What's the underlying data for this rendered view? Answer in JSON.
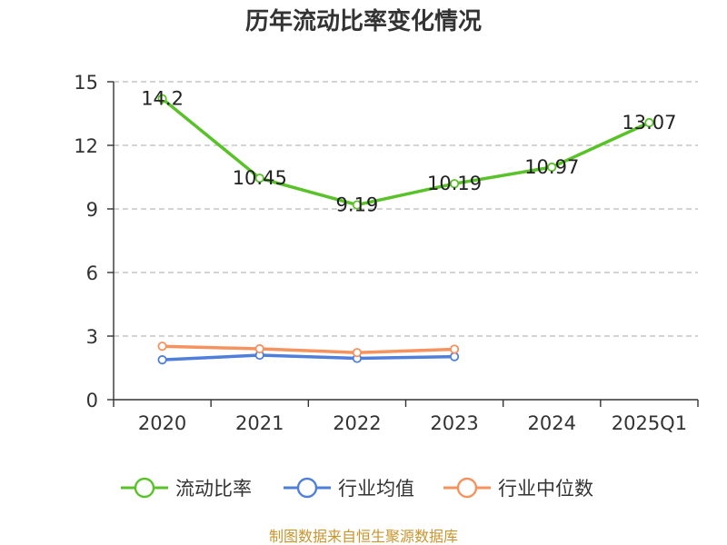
{
  "chart_data": {
    "type": "line",
    "title": "历年流动比率变化情况",
    "categories": [
      "2020",
      "2021",
      "2022",
      "2023",
      "2024",
      "2025Q1"
    ],
    "ylim": [
      0,
      15
    ],
    "yticks": [
      0,
      3,
      6,
      9,
      12,
      15
    ],
    "grid": true,
    "legend_position": "bottom",
    "series": [
      {
        "name": "流动比率",
        "color": "#5ac229",
        "values": [
          14.2,
          10.45,
          9.19,
          10.19,
          10.97,
          13.07
        ],
        "data_labels": [
          "14.2",
          "10.45",
          "9.19",
          "10.19",
          "10.97",
          "13.07"
        ]
      },
      {
        "name": "行业均值",
        "color": "#4f7fdb",
        "values": [
          1.88,
          2.1,
          1.95,
          2.03,
          null,
          null
        ]
      },
      {
        "name": "行业中位数",
        "color": "#f5925e",
        "values": [
          2.52,
          2.4,
          2.22,
          2.38,
          null,
          null
        ]
      }
    ],
    "source_text": "制图数据来自恒生聚源数据库"
  }
}
